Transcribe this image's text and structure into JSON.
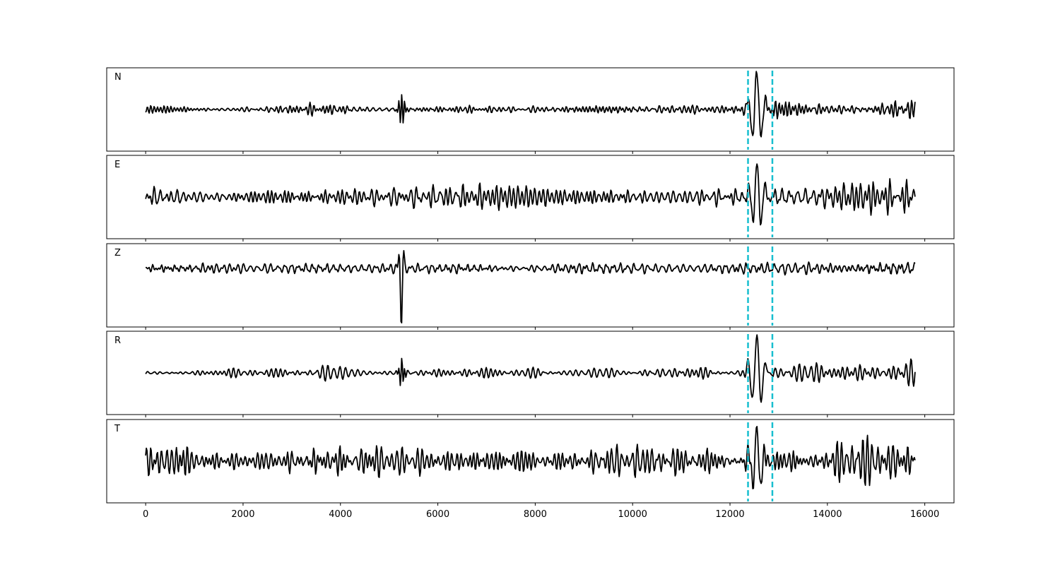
{
  "chart_data": {
    "type": "line",
    "xlim": [
      -800,
      16600
    ],
    "x_ticks": [
      0,
      2000,
      4000,
      6000,
      8000,
      10000,
      12000,
      14000,
      16000
    ],
    "x_tick_labels": [
      "0",
      "2000",
      "4000",
      "6000",
      "8000",
      "10000",
      "12000",
      "14000",
      "16000"
    ],
    "sample_count": 15800,
    "pick_lines": [
      12370,
      12870
    ],
    "pick_line_color": "#17becf",
    "trace_color": "#000000",
    "grid": false,
    "panels": [
      {
        "label": "N",
        "ylim": [
          -1.1,
          1.1
        ],
        "events": [
          {
            "x": 5260,
            "amp": 0.45,
            "width": 70,
            "period": 60
          },
          {
            "x": 12550,
            "amp": 1.0,
            "width": 160,
            "period": 190
          }
        ],
        "noise_amp": 0.14,
        "late_noise_amp": 0.32,
        "seed": 11
      },
      {
        "label": "E",
        "ylim": [
          -1.1,
          1.1
        ],
        "events": [
          {
            "x": 12550,
            "amp": 0.95,
            "width": 150,
            "period": 170
          }
        ],
        "noise_amp": 0.3,
        "late_noise_amp": 0.45,
        "seed": 23
      },
      {
        "label": "Z",
        "ylim": [
          -1.3,
          0.55
        ],
        "events": [
          {
            "x": 5250,
            "amp": -1.25,
            "width": 45,
            "period": 120
          }
        ],
        "noise_amp": 0.15,
        "late_noise_amp": 0.2,
        "seed": 37
      },
      {
        "label": "R",
        "ylim": [
          -1.1,
          1.1
        ],
        "events": [
          {
            "x": 5260,
            "amp": 0.35,
            "width": 70,
            "period": 60
          },
          {
            "x": 12550,
            "amp": 1.0,
            "width": 160,
            "period": 190
          }
        ],
        "noise_amp": 0.14,
        "late_noise_amp": 0.3,
        "seed": 51
      },
      {
        "label": "T",
        "ylim": [
          -1.1,
          1.1
        ],
        "events": [
          {
            "x": 12550,
            "amp": 0.9,
            "width": 150,
            "period": 170
          }
        ],
        "noise_amp": 0.36,
        "late_noise_amp": 0.5,
        "seed": 67
      }
    ]
  }
}
